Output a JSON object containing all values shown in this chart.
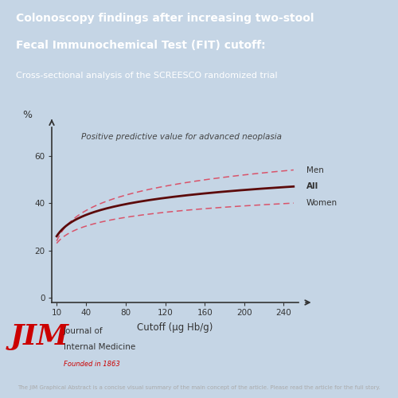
{
  "bg_color": "#c5d5e5",
  "header_bg": "#4a7ab5",
  "header_text_bold_line1": "Colonoscopy findings after increasing two-stool",
  "header_text_bold_line2": "Fecal Immunochemical Test (FIT) cutoff:",
  "header_text_normal": "Cross-sectional analysis of the SCREESCO randomized trial",
  "footer_text": "The JIM Graphical Abstract is a concise visual summary of the main concept of the article. Please read the article for the full story.",
  "footer_bg": "#333333",
  "footer_text_color": "#aaaaaa",
  "chart_annotation": "Positive predictive value for advanced neoplasia",
  "xlabel": "Cutoff (µg Hb/g)",
  "ylabel": "%",
  "xticks": [
    10,
    40,
    80,
    120,
    160,
    200,
    240
  ],
  "yticks": [
    0,
    20,
    40,
    60
  ],
  "xlim": [
    5,
    255
  ],
  "ylim": [
    -2,
    72
  ],
  "line_color_all": "#5c0a0a",
  "line_color_bands": "#d9536a",
  "jim_red": "#cc0000",
  "jim_text": "#333333"
}
